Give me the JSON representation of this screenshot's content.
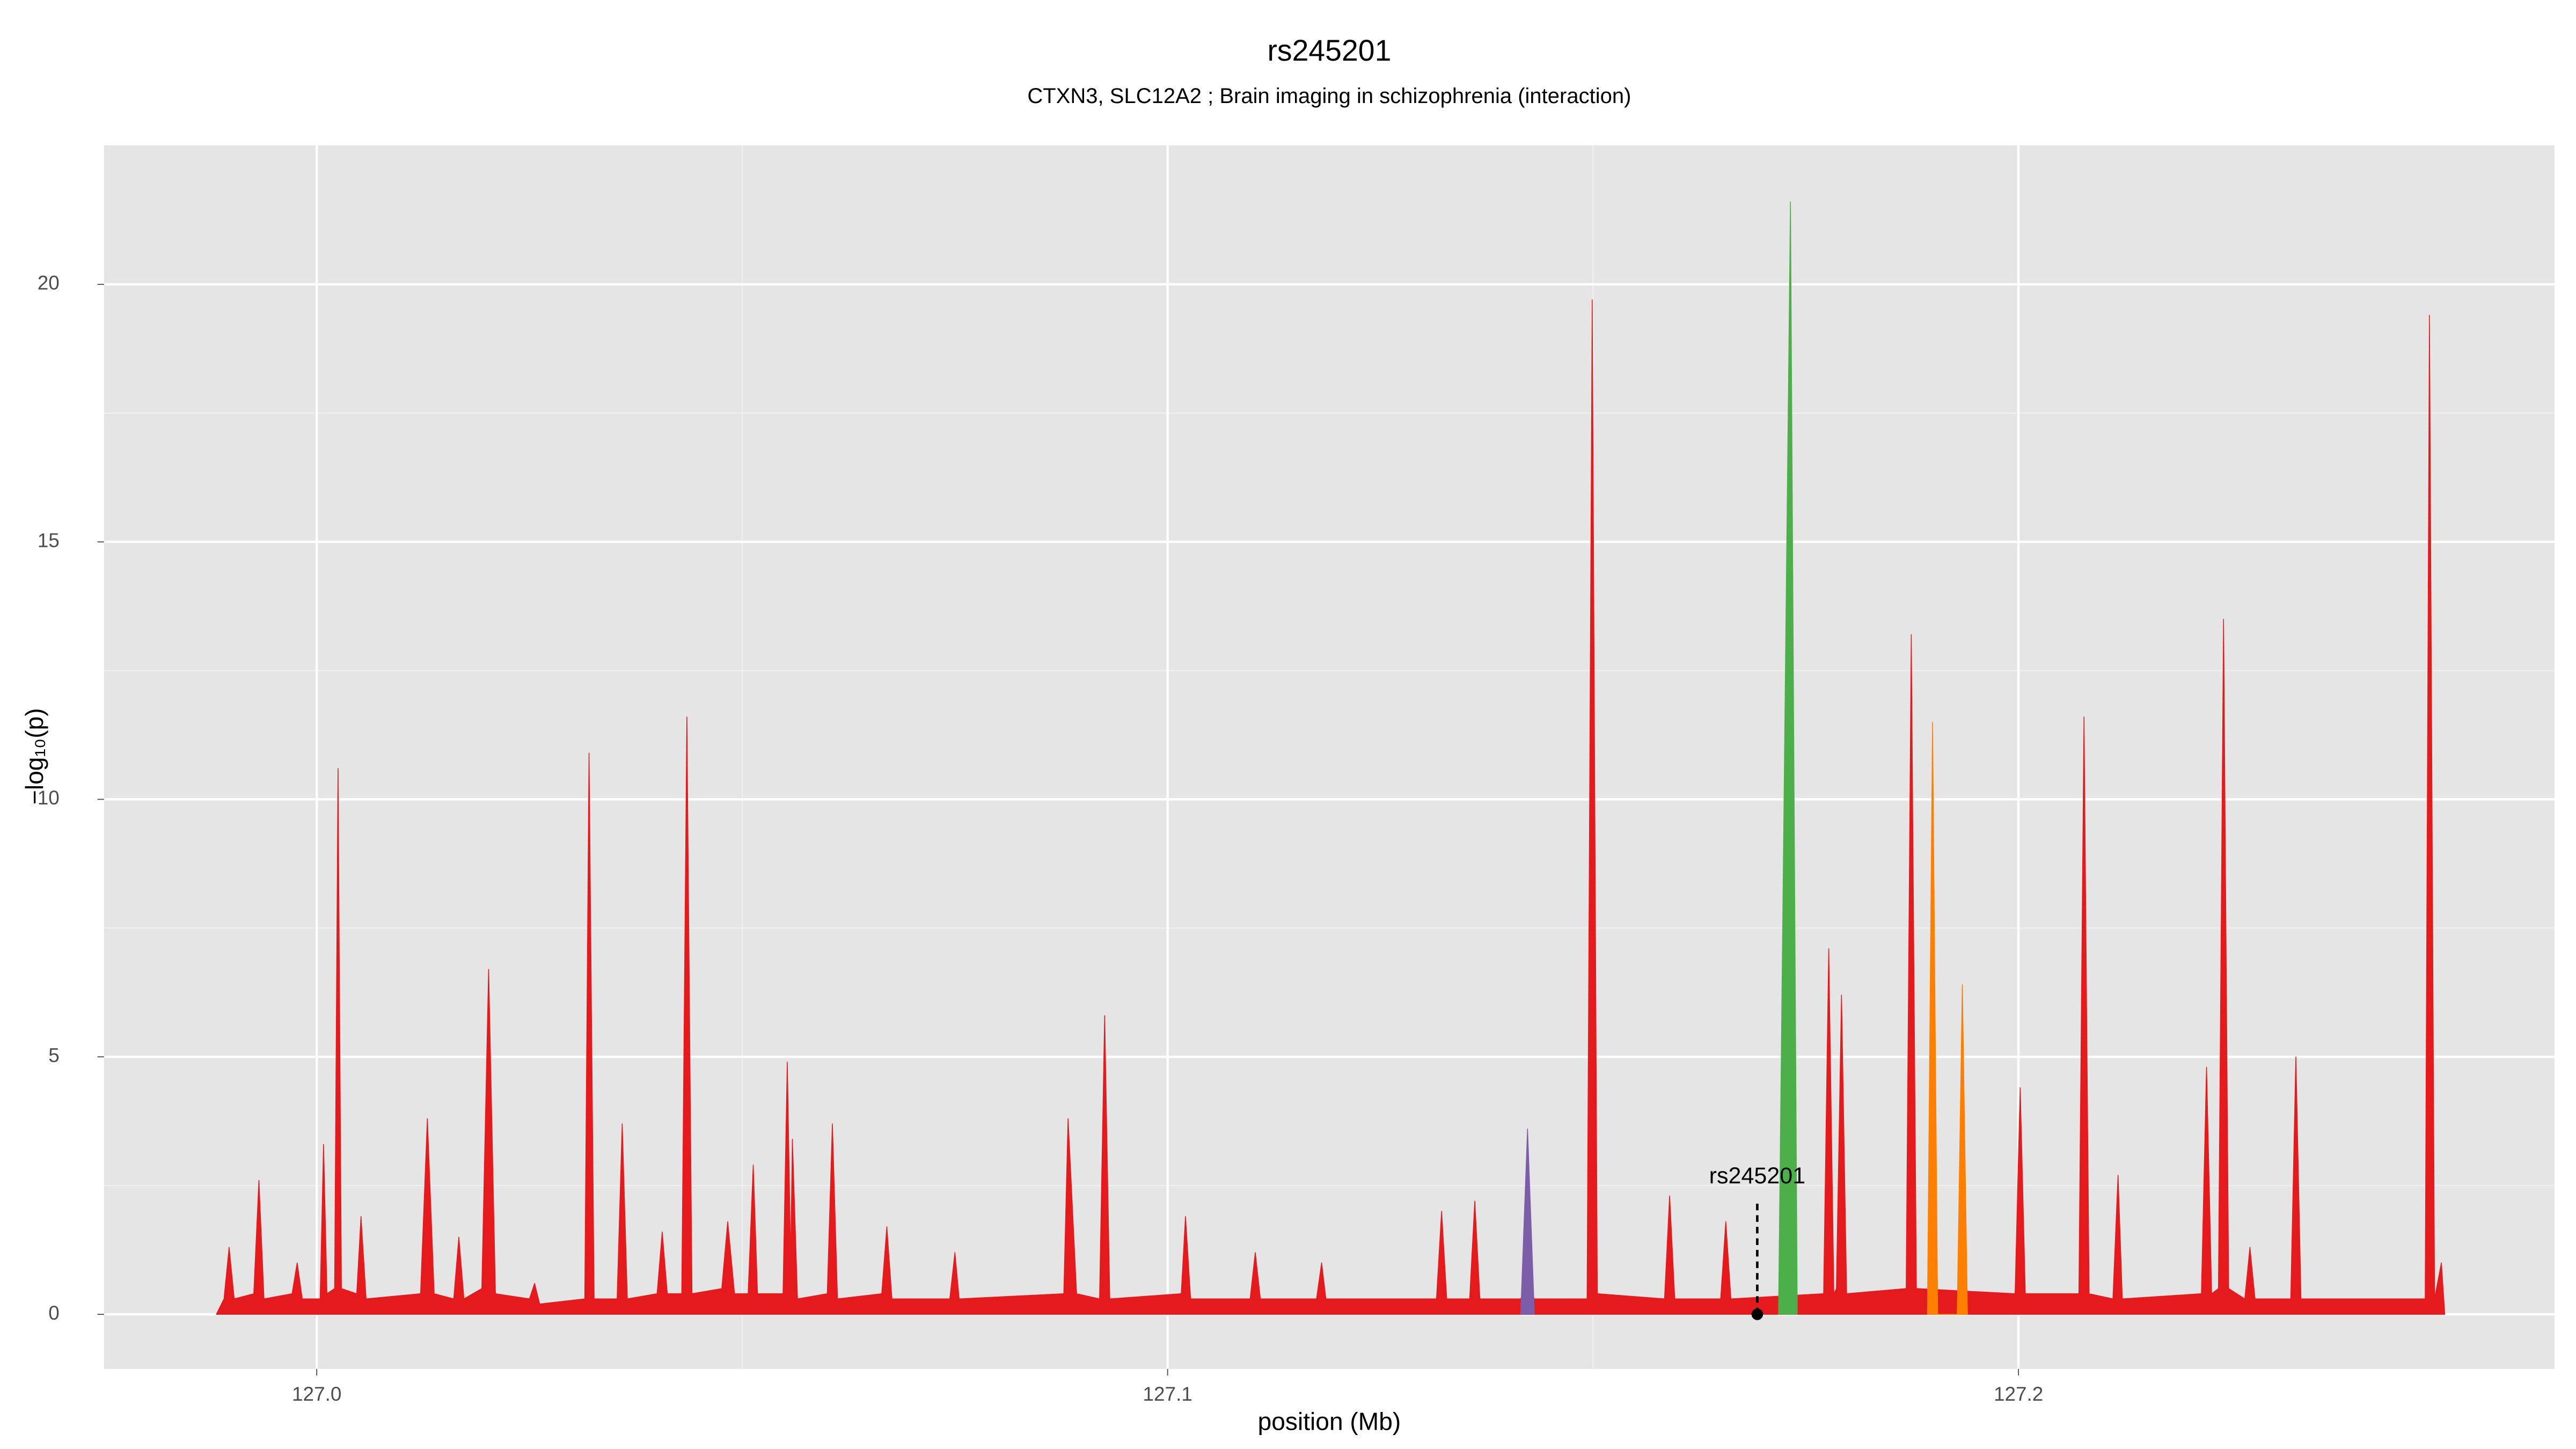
{
  "chart_data": {
    "type": "area",
    "title": "rs245201",
    "subtitle": "CTXN3, SLC12A2 ; Brain imaging in schizophrenia (interaction)",
    "x_label": "position (Mb)",
    "y_label": "−log₁₀(p)",
    "xlim": [
      126.975,
      127.263
    ],
    "ylim": [
      -1.06,
      22.7
    ],
    "xticks": [
      {
        "value": 127,
        "label": "127.0"
      },
      127.1,
      127.2
    ],
    "yticks": [
      0,
      5,
      10,
      15,
      20
    ],
    "grid": true,
    "minor_grid": true,
    "background": "#e5e5e5",
    "series": [
      {
        "color": "#e41a1c",
        "x": [
          126.9882,
          126.9891,
          126.9897,
          126.9903,
          126.9926,
          126.9932,
          126.9938,
          126.9971,
          126.9977,
          126.9983,
          127.0004,
          127.0008,
          127.0012,
          127.0021,
          127.0025,
          127.0029,
          127.0047,
          127.0052,
          127.0058,
          127.0122,
          127.013,
          127.0138,
          127.0161,
          127.0167,
          127.0173,
          127.0194,
          127.0202,
          127.021,
          127.025,
          127.0256,
          127.0262,
          127.0315,
          127.032,
          127.0326,
          127.0353,
          127.0359,
          127.0365,
          127.04,
          127.0406,
          127.0412,
          127.0429,
          127.0435,
          127.0441,
          127.0476,
          127.0483,
          127.0491,
          127.0507,
          127.0513,
          127.0518,
          127.0548,
          127.0553,
          127.0557,
          127.0559,
          127.0565,
          127.06,
          127.0606,
          127.0612,
          127.0664,
          127.067,
          127.0676,
          127.0744,
          127.075,
          127.0755,
          127.0878,
          127.0883,
          127.0893,
          127.092,
          127.0926,
          127.0932,
          127.1016,
          127.1021,
          127.1027,
          127.1097,
          127.1103,
          127.1109,
          127.1175,
          127.1181,
          127.1186,
          127.1316,
          127.1322,
          127.1328,
          127.1355,
          127.1361,
          127.1367,
          127.1415,
          127.1423,
          127.1431,
          127.1493,
          127.1499,
          127.1505,
          127.1584,
          127.159,
          127.1596,
          127.165,
          127.1656,
          127.1662,
          127.1771,
          127.1777,
          127.1783,
          127.1786,
          127.1792,
          127.1798,
          127.1868,
          127.1874,
          127.188,
          127.1996,
          127.2002,
          127.2008,
          127.2071,
          127.2077,
          127.2083,
          127.2111,
          127.2117,
          127.2122,
          127.2215,
          127.2221,
          127.2227,
          127.2235,
          127.2241,
          127.2247,
          127.2266,
          127.2272,
          127.2278,
          127.232,
          127.2326,
          127.2332,
          127.2478,
          127.2483,
          127.2489,
          127.2497,
          127.2501
        ],
        "values": [
          0,
          0.3,
          1.3,
          0.3,
          0.4,
          2.6,
          0.3,
          0.4,
          1.0,
          0.3,
          0.3,
          3.3,
          0.4,
          0.5,
          10.6,
          0.5,
          0.4,
          1.9,
          0.3,
          0.4,
          3.8,
          0.4,
          0.3,
          1.5,
          0.3,
          0.5,
          6.7,
          0.4,
          0.3,
          0.6,
          0.2,
          0.3,
          10.9,
          0.3,
          0.3,
          3.7,
          0.3,
          0.4,
          1.6,
          0.4,
          0.4,
          11.6,
          0.4,
          0.5,
          1.8,
          0.4,
          0.4,
          2.9,
          0.4,
          0.4,
          4.9,
          1.0,
          3.4,
          0.3,
          0.4,
          3.7,
          0.3,
          0.4,
          1.7,
          0.3,
          0.3,
          1.2,
          0.3,
          0.4,
          3.8,
          0.4,
          0.3,
          5.8,
          0.3,
          0.4,
          1.9,
          0.3,
          0.3,
          1.2,
          0.3,
          0.3,
          1.0,
          0.3,
          0.3,
          2.0,
          0.3,
          0.3,
          2.2,
          0.3,
          0.3,
          0.6,
          0.3,
          0.3,
          19.7,
          0.4,
          0.3,
          2.3,
          0.3,
          0.3,
          1.8,
          0.3,
          0.4,
          7.1,
          0.4,
          0.5,
          6.2,
          0.4,
          0.5,
          13.2,
          0.5,
          0.4,
          4.4,
          0.4,
          0.4,
          11.6,
          0.4,
          0.3,
          2.7,
          0.3,
          0.4,
          4.8,
          0.4,
          0.5,
          13.5,
          0.5,
          0.3,
          1.3,
          0.3,
          0.3,
          5.0,
          0.3,
          0.3,
          19.4,
          0.3,
          1.0,
          0
        ]
      },
      {
        "color": "#ff7f00",
        "x": [
          127.1893,
          127.1899,
          127.1905,
          127.1928,
          127.1934,
          127.194
        ],
        "values": [
          0,
          11.5,
          0,
          0,
          6.4,
          0
        ]
      },
      {
        "color": "#7b5ea7",
        "x": [
          127.1415,
          127.1423,
          127.1431
        ],
        "values": [
          0,
          3.6,
          0
        ]
      },
      {
        "color": "#4daf4a",
        "x": [
          127.1718,
          127.1732,
          127.174
        ],
        "values": [
          0,
          21.6,
          0
        ]
      }
    ],
    "annotation": {
      "text": "rs245201",
      "x": 127.1693,
      "y": 0
    }
  }
}
